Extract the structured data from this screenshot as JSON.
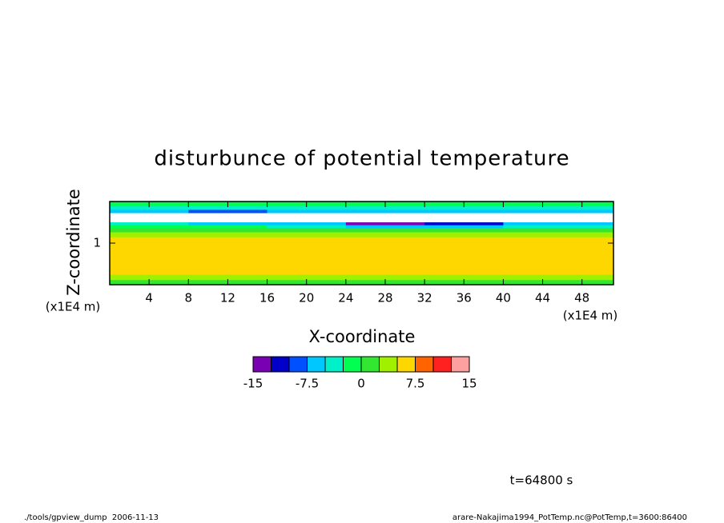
{
  "chart_data": {
    "type": "contour",
    "title": "disturbunce of potential temperature",
    "x_label": "X-coordinate",
    "y_label": "Z-coordinate",
    "x_unit": "(x1E4 m)",
    "y_unit": "(x1E4 m)",
    "xlim": [
      0,
      51.2
    ],
    "ylim": [
      0,
      2
    ],
    "xticks": [
      4,
      8,
      12,
      16,
      20,
      24,
      28,
      32,
      36,
      40,
      44,
      48
    ],
    "yticks": [
      1
    ],
    "x_edges": [
      0,
      8,
      16,
      24,
      32,
      40,
      51.2
    ],
    "z_edges": [
      0,
      0.12,
      0.25,
      1.15,
      1.27,
      1.37,
      1.44,
      1.5,
      1.73,
      1.81,
      1.9,
      2
    ],
    "values": [
      [
        1,
        1,
        1,
        1,
        1,
        1
      ],
      [
        3.5,
        3.5,
        3.5,
        3.5,
        3.5,
        3.5
      ],
      [
        6,
        6,
        6,
        6,
        6,
        6
      ],
      [
        3.5,
        3.5,
        3.5,
        3.5,
        3.5,
        3.5
      ],
      [
        1,
        1,
        1,
        1,
        1,
        1
      ],
      [
        -1.5,
        -1.5,
        -4,
        -6,
        -6,
        -4
      ],
      [
        -4,
        -6,
        -6,
        -13,
        -11,
        -6
      ],
      [
        null,
        null,
        null,
        null,
        null,
        null
      ],
      [
        -6,
        -8,
        -6,
        -6,
        -6,
        -6
      ],
      [
        -4,
        -4,
        -4,
        -4,
        -4,
        -4
      ],
      [
        -1.5,
        -1.5,
        -1.5,
        -1.5,
        -1.5,
        -1.5
      ]
    ],
    "levels": [
      -15,
      -12.5,
      -10,
      -7.5,
      -5,
      -2.5,
      0,
      2.5,
      5,
      7.5,
      10,
      12.5,
      15
    ],
    "colors": [
      "#7a00b4",
      "#0000c8",
      "#0050ff",
      "#00c8ff",
      "#00f0c8",
      "#00ff50",
      "#32e632",
      "#a0f000",
      "#ffd700",
      "#ff6400",
      "#ff2020",
      "#ffa0a0"
    ],
    "colorbar_ticks": [
      -15,
      -7.5,
      0,
      7.5,
      15
    ],
    "annotation": "t=64800 s",
    "footer_left": "./tools/gpview_dump  2006-11-13",
    "footer_right": "arare-Nakajima1994_PotTemp.nc@PotTemp,t=3600:86400"
  }
}
